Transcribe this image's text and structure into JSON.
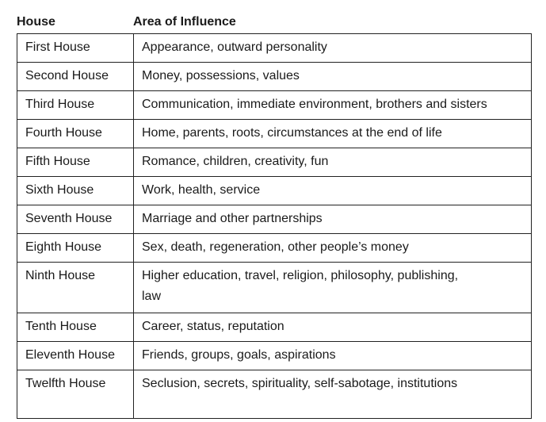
{
  "table": {
    "header_house": "House",
    "header_area": "Area of Influence",
    "rows": [
      {
        "house": "First House",
        "area": "Appearance, outward personality"
      },
      {
        "house": "Second House",
        "area": "Money, possessions, values"
      },
      {
        "house": "Third House",
        "area": "Communication, immediate environment, brothers and sisters"
      },
      {
        "house": "Fourth House",
        "area": "Home, parents, roots, circumstances at the end of life"
      },
      {
        "house": "Fifth House",
        "area": "Romance, children, creativity, fun"
      },
      {
        "house": "Sixth House",
        "area": "Work, health, service"
      },
      {
        "house": "Seventh House",
        "area": "Marriage and other partnerships"
      },
      {
        "house": "Eighth House",
        "area": "Sex, death, regeneration, other people’s money"
      },
      {
        "house": "Ninth House",
        "area": "Higher education, travel, religion, philosophy, publishing, law"
      },
      {
        "house": "Tenth House",
        "area": "Career, status, reputation"
      },
      {
        "house": "Eleventh House",
        "area": "Friends, groups, goals, aspirations"
      },
      {
        "house": "Twelfth House",
        "area": "Seclusion, secrets, spirituality, self-sabotage, institutions"
      }
    ]
  }
}
